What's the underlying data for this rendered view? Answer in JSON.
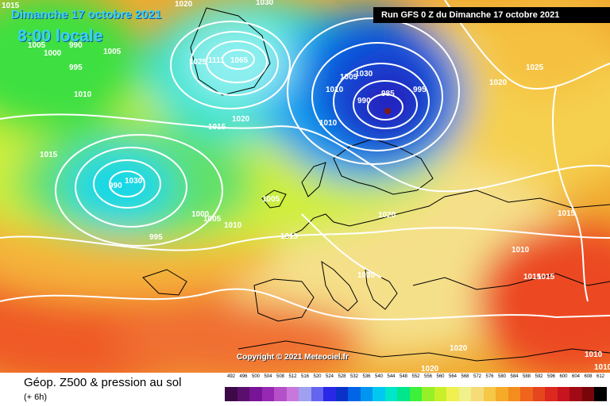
{
  "map": {
    "date_label": "Dimanche 17 octobre 2021",
    "hour_label": "8:00 locale",
    "run_label": "Run GFS 0 Z du Dimanche 17 octobre 2021",
    "copyright": "Copyright © 2021 Meteociel.fr",
    "isobar_labels": [
      {
        "id": "a",
        "text": "1015"
      },
      {
        "id": "b",
        "text": "1020"
      },
      {
        "id": "c",
        "text": "1030"
      },
      {
        "id": "d",
        "text": "1005"
      },
      {
        "id": "e",
        "text": "990"
      },
      {
        "id": "f",
        "text": "1000"
      },
      {
        "id": "g",
        "text": "1005"
      },
      {
        "id": "h",
        "text": "995"
      },
      {
        "id": "i",
        "text": "1010"
      },
      {
        "id": "j",
        "text": "1015"
      },
      {
        "id": "k",
        "text": "1025"
      },
      {
        "id": "l",
        "text": "1111"
      },
      {
        "id": "m",
        "text": "1065"
      },
      {
        "id": "n",
        "text": "1015"
      },
      {
        "id": "o",
        "text": "1020"
      },
      {
        "id": "p",
        "text": "1005"
      },
      {
        "id": "q",
        "text": "1030"
      },
      {
        "id": "r",
        "text": "1010"
      },
      {
        "id": "s",
        "text": "990"
      },
      {
        "id": "t",
        "text": "985"
      },
      {
        "id": "u",
        "text": "995"
      },
      {
        "id": "v",
        "text": "1020"
      },
      {
        "id": "w",
        "text": "1025"
      },
      {
        "id": "x",
        "text": "990"
      },
      {
        "id": "y",
        "text": "1030"
      },
      {
        "id": "z",
        "text": "995"
      },
      {
        "id": "aa",
        "text": "1000"
      },
      {
        "id": "ab",
        "text": "1005"
      },
      {
        "id": "ac",
        "text": "1010"
      },
      {
        "id": "ad",
        "text": "1005"
      },
      {
        "id": "ae",
        "text": "1015"
      },
      {
        "id": "af",
        "text": "1020"
      },
      {
        "id": "ag",
        "text": "1015"
      },
      {
        "id": "ah",
        "text": "1010"
      },
      {
        "id": "ai",
        "text": "1015"
      },
      {
        "id": "aj",
        "text": "1015"
      },
      {
        "id": "ak",
        "text": "1020"
      },
      {
        "id": "al",
        "text": "1020"
      },
      {
        "id": "am",
        "text": "1020"
      },
      {
        "id": "an",
        "text": "1010"
      },
      {
        "id": "ao",
        "text": "1010"
      },
      {
        "id": "ap",
        "text": "1010"
      }
    ]
  },
  "legend": {
    "title": "Géop. Z500 & pression au sol",
    "subtitle": "(+ 6h)",
    "scale": [
      {
        "label": "492",
        "color": "#3c0a46"
      },
      {
        "label": "496",
        "color": "#5a0f6e"
      },
      {
        "label": "500",
        "color": "#781496"
      },
      {
        "label": "504",
        "color": "#9628b4"
      },
      {
        "label": "508",
        "color": "#b450c8"
      },
      {
        "label": "512",
        "color": "#c878dc"
      },
      {
        "label": "516",
        "color": "#a0a0f0"
      },
      {
        "label": "520",
        "color": "#6464f0"
      },
      {
        "label": "524",
        "color": "#2828e6"
      },
      {
        "label": "528",
        "color": "#0a32c8"
      },
      {
        "label": "532",
        "color": "#0064e6"
      },
      {
        "label": "536",
        "color": "#0096f0"
      },
      {
        "label": "540",
        "color": "#00c8f0"
      },
      {
        "label": "544",
        "color": "#00e6c8"
      },
      {
        "label": "548",
        "color": "#00e68c"
      },
      {
        "label": "552",
        "color": "#3cf03c"
      },
      {
        "label": "556",
        "color": "#96f028"
      },
      {
        "label": "560",
        "color": "#c8f028"
      },
      {
        "label": "564",
        "color": "#f0f050"
      },
      {
        "label": "568",
        "color": "#f0f08c"
      },
      {
        "label": "572",
        "color": "#f5dc78"
      },
      {
        "label": "576",
        "color": "#f5c846"
      },
      {
        "label": "580",
        "color": "#f5aa28"
      },
      {
        "label": "584",
        "color": "#f58c1e"
      },
      {
        "label": "588",
        "color": "#f0641e"
      },
      {
        "label": "592",
        "color": "#e6461e"
      },
      {
        "label": "596",
        "color": "#dc281e"
      },
      {
        "label": "600",
        "color": "#c8141e"
      },
      {
        "label": "604",
        "color": "#a00a14"
      },
      {
        "label": "608",
        "color": "#78050a"
      },
      {
        "label": "612",
        "color": "#000000"
      }
    ]
  },
  "colors": {
    "cold_core": "#0a32c8",
    "warm_core": "#e6461e",
    "isobar": "#ffffff",
    "coastline": "#000000"
  }
}
